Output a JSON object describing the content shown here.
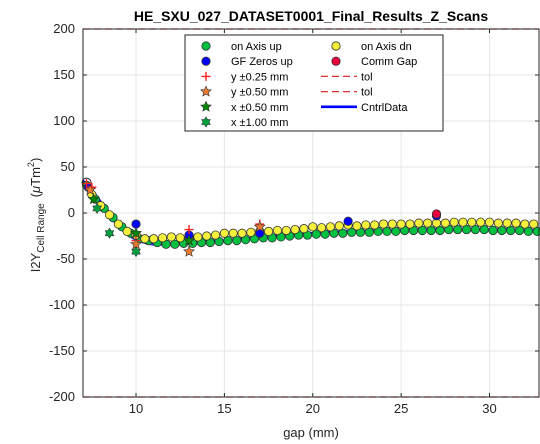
{
  "chart_data": {
    "type": "scatter",
    "title": "HE_SXU_027_DATASET0001_Final_Results_Z_Scans",
    "xlabel": "gap (mm)",
    "ylabel_main": "I2Y",
    "ylabel_sub": "Cell Range",
    "ylabel_unit_open": "(",
    "ylabel_unit_mu": "μ",
    "ylabel_unit_tm": "Tm",
    "ylabel_unit_exp": "2",
    "ylabel_unit_close": ")",
    "xlim": [
      7.0,
      32.8
    ],
    "ylim": [
      -200,
      200
    ],
    "x_ticks": [
      10,
      15,
      20,
      25,
      30
    ],
    "y_ticks": [
      -200,
      -150,
      -100,
      -50,
      0,
      50,
      100,
      150,
      200
    ],
    "grid": true,
    "legend_position": "top-center",
    "tolerance": {
      "upper": 200,
      "lower": -200,
      "color": "#e03030"
    },
    "colors": {
      "axis_up": "#00c040",
      "axis_dn": "#f5f03c",
      "gf_zero": "#0000ff",
      "comm_gap": "#e8003c",
      "y025": "#ff2020",
      "y050": "#e87830",
      "x050": "#008800",
      "x100": "#00a040",
      "cntrl": "#0000ff",
      "tol": "#e03030"
    },
    "legend": [
      {
        "key": "axis_up",
        "label": "on Axis up",
        "marker": "circle-green"
      },
      {
        "key": "axis_dn",
        "label": "on Axis dn",
        "marker": "circle-yellow"
      },
      {
        "key": "gf_zero",
        "label": "GF Zeros up",
        "marker": "circle-blue"
      },
      {
        "key": "comm_gap",
        "label": "Comm Gap",
        "marker": "circle-red"
      },
      {
        "key": "y025",
        "label": "y ±0.25 mm",
        "marker": "plus"
      },
      {
        "key": "tol1",
        "label": "tol",
        "marker": "dash"
      },
      {
        "key": "y050",
        "label": "y ±0.50 mm",
        "marker": "star-orange"
      },
      {
        "key": "tol2",
        "label": "tol",
        "marker": "dash"
      },
      {
        "key": "x050",
        "label": "x ±0.50 mm",
        "marker": "star-green"
      },
      {
        "key": "cntrl",
        "label": "CntrlData",
        "marker": "line"
      },
      {
        "key": "x100",
        "label": "x ±1.00 mm",
        "marker": "hex-green"
      }
    ],
    "series": [
      {
        "name": "on Axis up",
        "marker": "circle",
        "color": "#00c040",
        "x": [
          7.2,
          7.7,
          8.2,
          8.7,
          9.2,
          9.7,
          10.2,
          10.7,
          11.2,
          11.7,
          12.2,
          12.7,
          13.2,
          13.7,
          14.2,
          14.7,
          15.2,
          15.7,
          16.2,
          16.7,
          17.2,
          17.7,
          18.2,
          18.7,
          19.2,
          19.7,
          20.2,
          20.7,
          21.2,
          21.7,
          22.2,
          22.7,
          23.2,
          23.7,
          24.2,
          24.7,
          25.2,
          25.7,
          26.2,
          26.7,
          27.2,
          27.7,
          28.2,
          28.7,
          29.2,
          29.7,
          30.2,
          30.7,
          31.2,
          31.7,
          32.2,
          32.7
        ],
        "y": [
          30,
          15,
          5,
          -5,
          -15,
          -22,
          -28,
          -30,
          -32,
          -34,
          -34,
          -33,
          -33,
          -32,
          -32,
          -31,
          -30,
          -30,
          -29,
          -28,
          -27,
          -27,
          -26,
          -25,
          -24,
          -24,
          -23,
          -23,
          -22,
          -22,
          -21,
          -21,
          -21,
          -20,
          -20,
          -20,
          -19,
          -19,
          -19,
          -19,
          -19,
          -18,
          -18,
          -18,
          -18,
          -18,
          -19,
          -19,
          -19,
          -19,
          -20,
          -20
        ]
      },
      {
        "name": "on Axis dn",
        "marker": "circle",
        "color": "#f5f03c",
        "x": [
          7.5,
          8.0,
          8.5,
          9.0,
          9.5,
          10.0,
          10.5,
          11.0,
          11.5,
          12.0,
          12.5,
          13.0,
          13.5,
          14.0,
          14.5,
          15.0,
          15.5,
          16.0,
          16.5,
          17.0,
          17.5,
          18.0,
          18.5,
          19.0,
          19.5,
          20.0,
          20.5,
          21.0,
          21.5,
          22.0,
          22.5,
          23.0,
          23.5,
          24.0,
          24.5,
          25.0,
          25.5,
          26.0,
          26.5,
          27.0,
          27.5,
          28.0,
          28.5,
          29.0,
          29.5,
          30.0,
          30.5,
          31.0,
          31.5,
          32.0,
          32.5
        ],
        "y": [
          20,
          8,
          -2,
          -12,
          -20,
          -24,
          -28,
          -28,
          -27,
          -26,
          -27,
          -26,
          -26,
          -25,
          -24,
          -22,
          -22,
          -22,
          -21,
          -20,
          -20,
          -19,
          -19,
          -18,
          -17,
          -15,
          -16,
          -15,
          -14,
          -13,
          -14,
          -13,
          -13,
          -12,
          -12,
          -12,
          -12,
          -11,
          -11,
          -11,
          -11,
          -10,
          -10,
          -10,
          -10,
          -10,
          -11,
          -11,
          -11,
          -12,
          -12
        ]
      },
      {
        "name": "GF Zeros up",
        "marker": "circle",
        "color": "#0000ff",
        "x": [
          7.3,
          10.0,
          13.0,
          17.0,
          22.0,
          27.0
        ],
        "y": [
          28,
          -12,
          -24,
          -22,
          -9,
          -3
        ]
      },
      {
        "name": "Comm Gap",
        "marker": "circle",
        "color": "#e8003c",
        "x": [
          27.0
        ],
        "y": [
          -1
        ]
      },
      {
        "name": "y ±0.25 mm",
        "marker": "plus",
        "color": "#ff2020",
        "x": [
          7.2,
          7.5,
          10.0,
          13.0,
          17.0
        ],
        "y": [
          32,
          28,
          -30,
          -18,
          -12
        ]
      },
      {
        "name": "y ±0.50 mm",
        "marker": "star",
        "color": "#e87830",
        "x": [
          7.4,
          10.0,
          13.0,
          17.0
        ],
        "y": [
          25,
          -34,
          -42,
          -15
        ]
      },
      {
        "name": "x ±0.50 mm",
        "marker": "star",
        "color": "#008800",
        "x": [
          7.6,
          10.0,
          13.0
        ],
        "y": [
          15,
          -22,
          -30
        ]
      },
      {
        "name": "x ±1.00 mm",
        "marker": "hexagram",
        "color": "#00a040",
        "x": [
          7.8,
          8.5,
          10.0
        ],
        "y": [
          5,
          -22,
          -42
        ]
      },
      {
        "name": "CntrlData",
        "marker": "line",
        "color": "#0000ff",
        "x": [
          7.0,
          7.5,
          8.0,
          8.5,
          9.0,
          9.5,
          10.0,
          10.5,
          11.0,
          12.0,
          13.0,
          14.0,
          15.0,
          16.0,
          17.0,
          18.0,
          19.0,
          20.0,
          21.0,
          22.0,
          23.0,
          24.0,
          25.0,
          26.0,
          27.0,
          28.0,
          29.0,
          30.0,
          31.0,
          32.0,
          32.8
        ],
        "y": [
          35,
          25,
          12,
          0,
          -12,
          -22,
          -28,
          -31,
          -33,
          -33,
          -32,
          -31,
          -30,
          -28,
          -27,
          -25,
          -24,
          -22,
          -21,
          -20,
          -20,
          -19,
          -19,
          -18,
          -18,
          -18,
          -18,
          -18,
          -18,
          -19,
          -19
        ]
      },
      {
        "name": "CntrlData band",
        "marker": "line",
        "color": "#2a4fe0",
        "x": [
          7.0,
          7.5,
          8.0,
          8.5,
          9.0,
          9.5,
          10.0,
          10.5,
          11.0,
          12.0,
          13.0,
          14.0,
          15.0,
          16.0,
          17.0,
          18.0,
          19.0,
          20.0,
          21.0,
          22.0,
          23.0,
          24.0,
          25.0,
          26.0,
          27.0,
          28.0,
          29.0,
          30.0,
          31.0,
          32.0,
          32.8
        ],
        "y": [
          30,
          20,
          8,
          -4,
          -15,
          -24,
          -30,
          -33,
          -35,
          -35,
          -34,
          -33,
          -31,
          -29,
          -28,
          -26,
          -25,
          -23,
          -22,
          -21,
          -21,
          -20,
          -20,
          -19,
          -19,
          -19,
          -19,
          -19,
          -19,
          -20,
          -20
        ]
      }
    ]
  }
}
